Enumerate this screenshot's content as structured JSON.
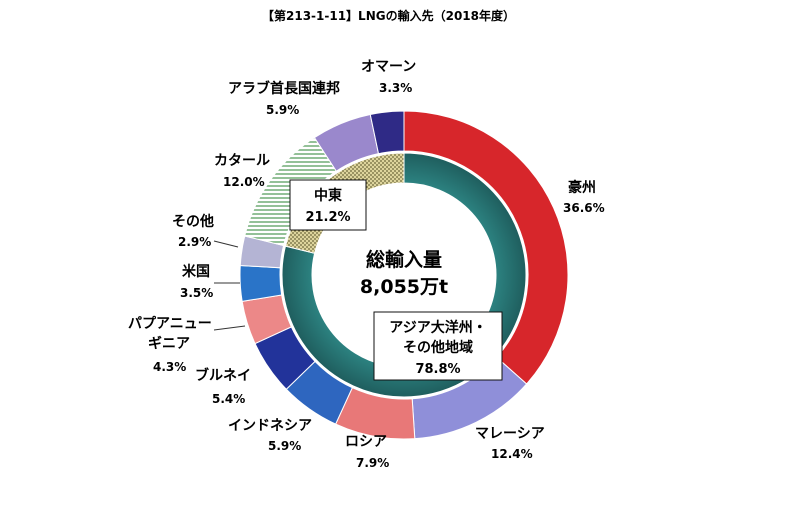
{
  "chart_data": {
    "type": "pie",
    "title": "【第213-1-11】LNGの輸入先（2018年度）",
    "center_label": [
      "総輸入量",
      "8,055万t"
    ],
    "outer_ring": [
      {
        "name": "豪州",
        "percent": "36.6%",
        "value": 36.6,
        "color": "#d7262b"
      },
      {
        "name": "マレーシア",
        "percent": "12.4%",
        "value": 12.4,
        "color": "#8f8fd9"
      },
      {
        "name": "ロシア",
        "percent": "7.9%",
        "value": 7.9,
        "color": "#e87878"
      },
      {
        "name": "インドネシア",
        "percent": "5.9%",
        "value": 5.9,
        "color": "#2e66bf"
      },
      {
        "name": "ブルネイ",
        "percent": "5.4%",
        "value": 5.4,
        "color": "#22339a"
      },
      {
        "name": "パプアニューギニア",
        "percent": "4.3%",
        "value": 4.3,
        "color": "#ec8888"
      },
      {
        "name": "米国",
        "percent": "3.5%",
        "value": 3.5,
        "color": "#2a74c8"
      },
      {
        "name": "その他",
        "percent": "2.9%",
        "value": 2.9,
        "color": "#b4b4d4"
      },
      {
        "name": "カタール",
        "percent": "12.0%",
        "value": 12.0,
        "color": "#ffffff"
      },
      {
        "name": "アラブ首長国連邦",
        "percent": "5.9%",
        "value": 5.9,
        "color": "#9a88cc"
      },
      {
        "name": "オマーン",
        "percent": "3.3%",
        "value": 3.3,
        "color": "#2f2a86"
      }
    ],
    "inner_ring": [
      {
        "name": "アジア大洋州・その他地域",
        "percent": "78.8%",
        "value": 78.8,
        "color": "#287a7a"
      },
      {
        "name": "中東",
        "percent": "21.2%",
        "value": 21.2,
        "color": "#c8c08a"
      }
    ]
  }
}
